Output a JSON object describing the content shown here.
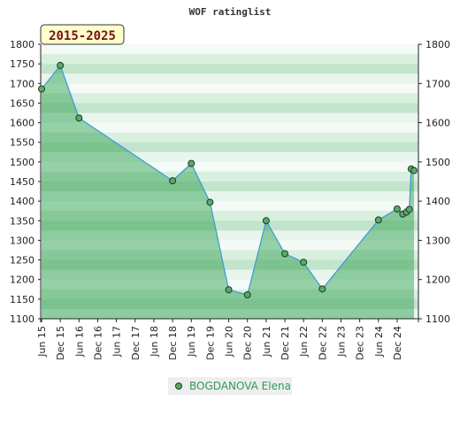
{
  "colors": {
    "area_top": "#8cccA4",
    "line": "#3a9ad9",
    "marker_fill": "#5aa86a",
    "marker_stroke": "#1b3d22",
    "badge_bg": "#ffffcc",
    "badge_text": "#7a1010",
    "legend_bg": "#eeeeee"
  },
  "chart_data": {
    "type": "line",
    "title": "WOF ratinglist",
    "badge": "2015-2025",
    "categories": [
      "Jun 15",
      "Dec 15",
      "Jun 16",
      "Dec 16",
      "Jun 17",
      "Dec 17",
      "Jun 18",
      "Dec 18",
      "Jun 19",
      "Dec 19",
      "Jun 20",
      "Dec 20",
      "Jun 21",
      "Dec 21",
      "Jun 22",
      "Dec 22",
      "Jun 23",
      "Dec 23",
      "Jun 24",
      "Dec 24"
    ],
    "ylim": [
      1100,
      1800
    ],
    "yticks": [
      1100,
      1150,
      1200,
      1250,
      1300,
      1350,
      1400,
      1450,
      1500,
      1550,
      1600,
      1650,
      1700,
      1750,
      1800
    ],
    "yticks_right": [
      1100,
      1200,
      1300,
      1400,
      1500,
      1600,
      1700,
      1800
    ],
    "series": [
      {
        "name": "BOGDANOVA Elena",
        "x": [
          0,
          1,
          2,
          7,
          8,
          9,
          10,
          11,
          12,
          13,
          14,
          15,
          18,
          19,
          19.3,
          19.5,
          19.65,
          19.75,
          19.9
        ],
        "y": [
          1686,
          1746,
          1612,
          1452,
          1496,
          1397,
          1174,
          1161,
          1350,
          1266,
          1244,
          1176,
          1352,
          1380,
          1367,
          1372,
          1379,
          1482,
          1478
        ]
      }
    ],
    "legend": "bottom-center"
  }
}
